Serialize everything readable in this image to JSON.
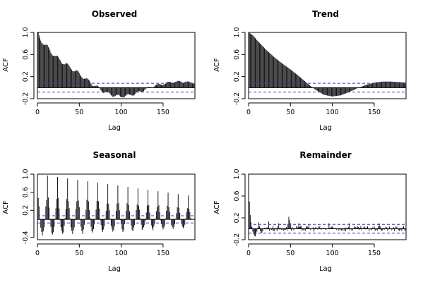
{
  "chart_data": [
    {
      "type": "bar",
      "title": "Observed",
      "xlabel": "Lag",
      "ylabel": "ACF",
      "xlim": [
        0,
        188
      ],
      "ylim": [
        -0.2,
        1.0
      ],
      "x_ticks": [
        0,
        50,
        100,
        150
      ],
      "y_ticks": [
        -0.2,
        0.2,
        0.6,
        1.0
      ],
      "y_tick_labels": [
        "-0.2",
        "0.2",
        "0.6",
        "1.0"
      ],
      "confidence_bound": 0.08,
      "max_lag": 188,
      "anchors": [
        [
          0,
          1.0
        ],
        [
          3,
          0.89
        ],
        [
          10,
          0.76
        ],
        [
          20,
          0.59
        ],
        [
          30,
          0.46
        ],
        [
          40,
          0.36
        ],
        [
          50,
          0.25
        ],
        [
          60,
          0.13
        ],
        [
          70,
          0.02
        ],
        [
          80,
          -0.08
        ],
        [
          90,
          -0.14
        ],
        [
          100,
          -0.16
        ],
        [
          110,
          -0.14
        ],
        [
          120,
          -0.09
        ],
        [
          130,
          -0.02
        ],
        [
          140,
          0.04
        ],
        [
          150,
          0.07
        ],
        [
          160,
          0.1
        ],
        [
          170,
          0.11
        ],
        [
          180,
          0.1
        ],
        [
          188,
          0.08
        ]
      ],
      "ripple": 0.04,
      "ripple_period": 12,
      "spike_amp": 0,
      "noise": 0.006
    },
    {
      "type": "bar",
      "title": "Trend",
      "xlabel": "Lag",
      "ylabel": "ACF",
      "xlim": [
        0,
        188
      ],
      "ylim": [
        -0.2,
        1.0
      ],
      "x_ticks": [
        0,
        50,
        100,
        150
      ],
      "y_ticks": [
        -0.2,
        0.2,
        0.6,
        1.0
      ],
      "y_tick_labels": [
        "-0.2",
        "0.2",
        "0.6",
        "1.0"
      ],
      "confidence_bound": 0.08,
      "max_lag": 188,
      "anchors": [
        [
          0,
          1.0
        ],
        [
          5,
          0.95
        ],
        [
          10,
          0.86
        ],
        [
          20,
          0.7
        ],
        [
          30,
          0.56
        ],
        [
          40,
          0.44
        ],
        [
          50,
          0.33
        ],
        [
          60,
          0.21
        ],
        [
          70,
          0.08
        ],
        [
          80,
          -0.04
        ],
        [
          90,
          -0.13
        ],
        [
          100,
          -0.16
        ],
        [
          110,
          -0.14
        ],
        [
          120,
          -0.08
        ],
        [
          130,
          -0.01
        ],
        [
          140,
          0.05
        ],
        [
          150,
          0.09
        ],
        [
          160,
          0.11
        ],
        [
          170,
          0.11
        ],
        [
          180,
          0.1
        ],
        [
          188,
          0.09
        ]
      ],
      "ripple": 0,
      "ripple_period": 12,
      "spike_amp": 0,
      "noise": 0
    },
    {
      "type": "bar",
      "title": "Seasonal",
      "xlabel": "Lag",
      "ylabel": "ACF",
      "xlim": [
        0,
        188
      ],
      "ylim": [
        -0.45,
        1.0
      ],
      "x_ticks": [
        0,
        50,
        100,
        150
      ],
      "y_ticks": [
        -0.4,
        0.2,
        0.6,
        1.0
      ],
      "y_tick_labels": [
        "-0.4",
        "0.2",
        "0.6",
        "1.0"
      ],
      "confidence_bound": 0.08,
      "max_lag": 183,
      "seasonal_period": 12,
      "peak_start": 1.0,
      "peak_end": 0.52,
      "trough_start": -0.34,
      "trough_end": -0.18
    },
    {
      "type": "bar",
      "title": "Remainder",
      "xlabel": "Lag",
      "ylabel": "ACF",
      "xlim": [
        0,
        188
      ],
      "ylim": [
        -0.2,
        1.0
      ],
      "x_ticks": [
        0,
        50,
        100,
        150
      ],
      "y_ticks": [
        -0.2,
        0.2,
        0.6,
        1.0
      ],
      "y_tick_labels": [
        "-0.2",
        "0.2",
        "0.6",
        "1.0"
      ],
      "confidence_bound": 0.08,
      "max_lag": 188,
      "points": [
        [
          0,
          1.0
        ],
        [
          1,
          0.5
        ],
        [
          2,
          0.25
        ],
        [
          3,
          0.12
        ],
        [
          4,
          0.04
        ],
        [
          5,
          -0.05
        ],
        [
          6,
          -0.1
        ],
        [
          7,
          -0.13
        ],
        [
          8,
          -0.14
        ],
        [
          9,
          -0.1
        ],
        [
          10,
          -0.05
        ],
        [
          11,
          0.02
        ],
        [
          12,
          0.12
        ],
        [
          13,
          0.05
        ],
        [
          14,
          -0.04
        ],
        [
          15,
          -0.08
        ],
        [
          16,
          -0.07
        ],
        [
          17,
          -0.04
        ],
        [
          18,
          0.0
        ],
        [
          19,
          0.02
        ],
        [
          20,
          0.01
        ],
        [
          24,
          0.13
        ],
        [
          36,
          0.1
        ],
        [
          47,
          0.09
        ],
        [
          48,
          0.22
        ],
        [
          49,
          0.16
        ],
        [
          50,
          0.1
        ],
        [
          60,
          0.1
        ],
        [
          72,
          0.08
        ],
        [
          96,
          0.1
        ],
        [
          120,
          0.1
        ],
        [
          156,
          0.1
        ]
      ],
      "noise": 0.05
    }
  ]
}
